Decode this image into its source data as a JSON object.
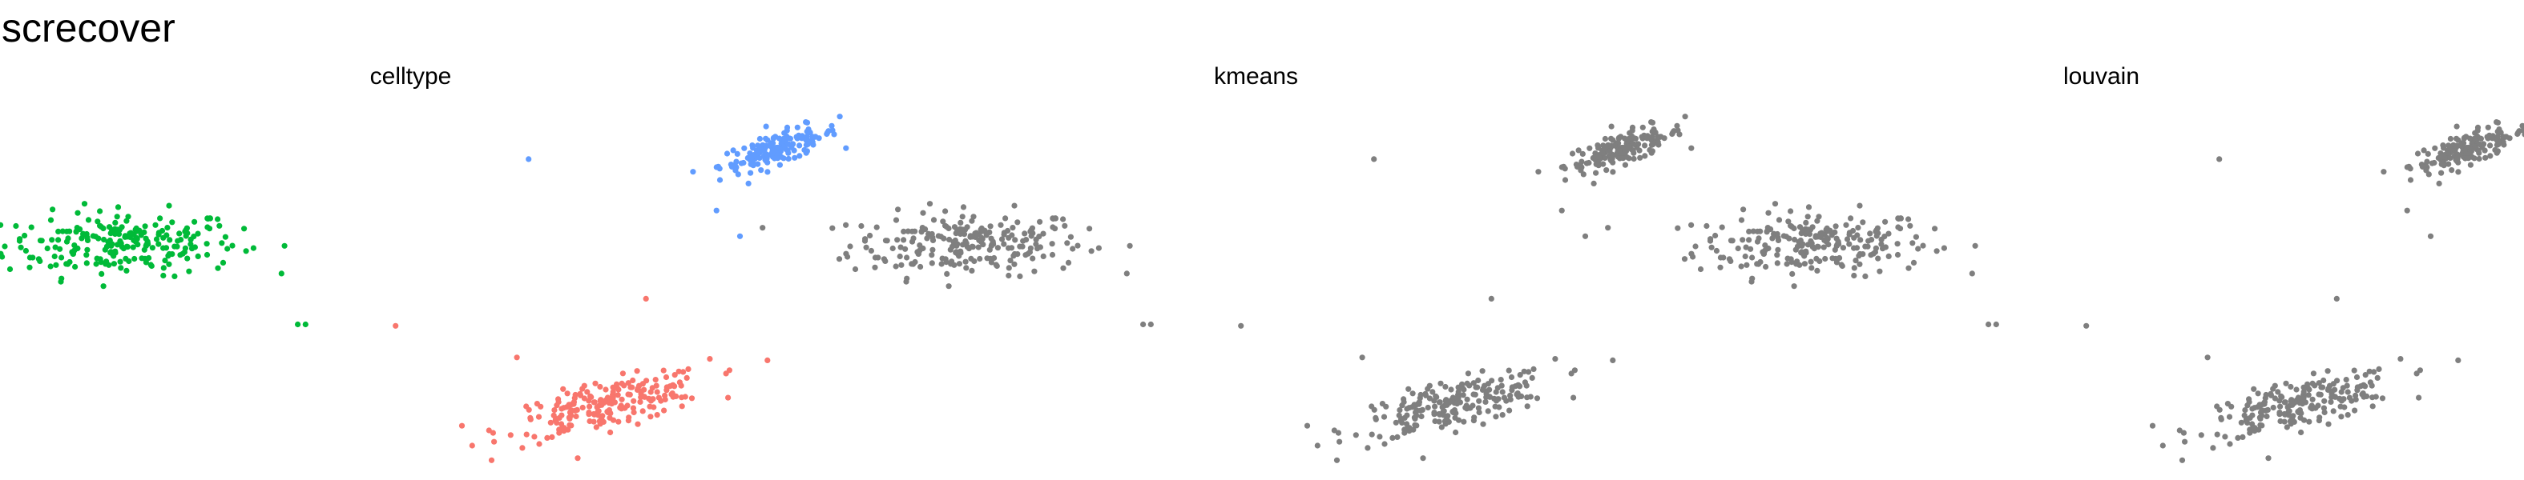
{
  "title": "screcover",
  "colors": {
    "green": "#00BA38",
    "blue": "#619CFF",
    "red": "#F8766D",
    "grey": "#7F7F7F"
  },
  "chart_data": [
    {
      "type": "scatter",
      "title": "celltype",
      "xlabel": "",
      "ylabel": "",
      "axes": "none",
      "grid": false,
      "legend": "none",
      "clusters": [
        {
          "color": "green",
          "n": 230,
          "center": [
            -3.2,
            0.4
          ],
          "sd": [
            0.75,
            0.22
          ],
          "rho": 0.05
        },
        {
          "color": "blue",
          "n": 150,
          "center": [
            5.2,
            1.7
          ],
          "sd": [
            0.38,
            0.16
          ],
          "rho": 0.75
        },
        {
          "color": "red",
          "n": 210,
          "center": [
            3.0,
            -1.8
          ],
          "sd": [
            0.65,
            0.22
          ],
          "rho": 0.7
        }
      ],
      "outliers": [
        {
          "x": -0.95,
          "y": -0.7,
          "color": "green"
        },
        {
          "x": -0.85,
          "y": -0.7,
          "color": "green"
        },
        {
          "x": 0.3,
          "y": -0.72,
          "color": "red"
        },
        {
          "x": 1.85,
          "y": -1.15,
          "color": "red"
        },
        {
          "x": 3.5,
          "y": -0.35,
          "color": "red"
        },
        {
          "x": 2.0,
          "y": 1.55,
          "color": "blue"
        },
        {
          "x": 4.7,
          "y": 0.5,
          "color": "blue"
        },
        {
          "x": 4.4,
          "y": 0.85,
          "color": "blue"
        }
      ]
    },
    {
      "type": "scatter",
      "title": "kmeans",
      "xlabel": "",
      "ylabel": "",
      "axes": "none",
      "grid": false,
      "legend": "none",
      "clusters": [
        {
          "color": "grey",
          "n": 230,
          "center": [
            -3.2,
            0.4
          ],
          "sd": [
            0.75,
            0.22
          ],
          "rho": 0.05
        },
        {
          "color": "grey",
          "n": 150,
          "center": [
            5.2,
            1.7
          ],
          "sd": [
            0.38,
            0.16
          ],
          "rho": 0.75
        },
        {
          "color": "grey",
          "n": 210,
          "center": [
            3.0,
            -1.8
          ],
          "sd": [
            0.65,
            0.22
          ],
          "rho": 0.7
        }
      ],
      "outliers": [
        {
          "x": -0.95,
          "y": -0.7,
          "color": "grey"
        },
        {
          "x": -0.85,
          "y": -0.7,
          "color": "grey"
        },
        {
          "x": 0.3,
          "y": -0.72,
          "color": "grey"
        },
        {
          "x": 1.85,
          "y": -1.15,
          "color": "grey"
        },
        {
          "x": 3.5,
          "y": -0.35,
          "color": "grey"
        },
        {
          "x": 2.0,
          "y": 1.55,
          "color": "grey"
        },
        {
          "x": 4.7,
          "y": 0.5,
          "color": "grey"
        },
        {
          "x": 4.4,
          "y": 0.85,
          "color": "grey"
        }
      ]
    },
    {
      "type": "scatter",
      "title": "louvain",
      "xlabel": "",
      "ylabel": "",
      "axes": "none",
      "grid": false,
      "legend": "none",
      "clusters": [
        {
          "color": "grey",
          "n": 230,
          "center": [
            -3.2,
            0.4
          ],
          "sd": [
            0.75,
            0.22
          ],
          "rho": 0.05
        },
        {
          "color": "grey",
          "n": 150,
          "center": [
            5.2,
            1.7
          ],
          "sd": [
            0.38,
            0.16
          ],
          "rho": 0.75
        },
        {
          "color": "grey",
          "n": 210,
          "center": [
            3.0,
            -1.8
          ],
          "sd": [
            0.65,
            0.22
          ],
          "rho": 0.7
        }
      ],
      "outliers": [
        {
          "x": -0.95,
          "y": -0.7,
          "color": "grey"
        },
        {
          "x": -0.85,
          "y": -0.7,
          "color": "grey"
        },
        {
          "x": 0.3,
          "y": -0.72,
          "color": "grey"
        },
        {
          "x": 1.85,
          "y": -1.15,
          "color": "grey"
        },
        {
          "x": 3.5,
          "y": -0.35,
          "color": "grey"
        },
        {
          "x": 2.0,
          "y": 1.55,
          "color": "grey"
        },
        {
          "x": 4.7,
          "y": 0.5,
          "color": "grey"
        },
        {
          "x": 4.4,
          "y": 0.85,
          "color": "grey"
        }
      ]
    }
  ]
}
